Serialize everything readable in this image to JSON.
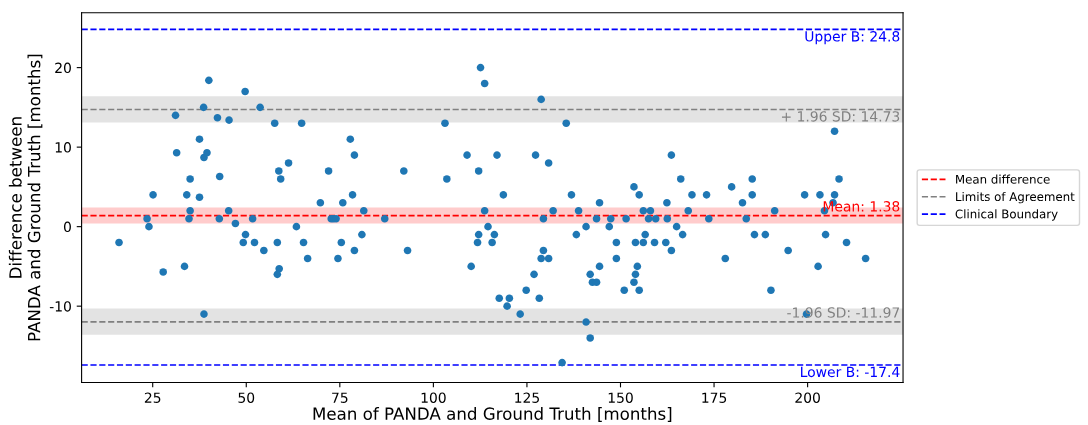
{
  "chart_data": {
    "type": "scatter",
    "xlabel": "Mean of PANDA and Ground Truth [months]",
    "ylabel": "Difference between\nPANDA and Ground Truth [months]",
    "xlim": [
      6,
      225.5
    ],
    "xticks": [
      25,
      50,
      75,
      100,
      125,
      150,
      175,
      200
    ],
    "ylim": [
      -19.6,
      26.9
    ],
    "yticks": [
      -10,
      0,
      10,
      20
    ],
    "grid": false,
    "legend": "right",
    "marker": "circle",
    "series": [
      {
        "color": "#1f77b4",
        "x": [
          16.0,
          23.5,
          24.0,
          25.1,
          27.8,
          31.1,
          31.4,
          33.5,
          34.1,
          34.7,
          35.0,
          35.0,
          37.5,
          37.5,
          38.6,
          38.7,
          39.5,
          38.7,
          40.0,
          42.3,
          42.9,
          42.8,
          45.3,
          45.4,
          47.1,
          49.7,
          49.2,
          49.8,
          51.7,
          52.2,
          53.7,
          54.7,
          57.6,
          58.3,
          58.7,
          59.2,
          58.8,
          58.3,
          61.3,
          64.8,
          63.4,
          65.3,
          66.4,
          69.8,
          72.0,
          72.7,
          73.3,
          74.0,
          74.5,
          75.4,
          75.8,
          77.8,
          78.4,
          78.9,
          78.9,
          80.9,
          81.4,
          87.0,
          92.1,
          93.1,
          103.1,
          103.6,
          109.0,
          110.1,
          112.1,
          111.8,
          112.1,
          112.6,
          113.7,
          113.7,
          114.6,
          115.7,
          116.3,
          117.0,
          117.6,
          118.7,
          120.3,
          119.7,
          123.2,
          124.8,
          126.9,
          127.3,
          128.3,
          128.8,
          128.8,
          130.8,
          129.4,
          129.4,
          130.8,
          132.0,
          134.4,
          135.5,
          136.9,
          138.2,
          138.8,
          140.8,
          140.8,
          141.9,
          141.9,
          142.5,
          143.6,
          143.6,
          144.4,
          144.4,
          147.0,
          147.4,
          148.9,
          148.9,
          151.0,
          151.5,
          153.6,
          154.0,
          153.6,
          154.0,
          154.5,
          155.0,
          155.0,
          156.1,
          156.1,
          158.0,
          156.6,
          157.5,
          159.4,
          159.1,
          162.1,
          162.4,
          162.5,
          163.6,
          163.6,
          165.0,
          166.1,
          166.6,
          168.1,
          169.1,
          173.0,
          173.6,
          178.0,
          179.7,
          182.6,
          183.6,
          185.2,
          185.2,
          185.8,
          188.7,
          190.2,
          191.2,
          194.8,
          199.2,
          199.7,
          202.8,
          203.3,
          204.5,
          204.8,
          207.2,
          208.4,
          207.2,
          206.8,
          210.4,
          215.5
        ],
        "values": [
          -2,
          1,
          0,
          4,
          -5.7,
          14,
          9.3,
          -5,
          4,
          1,
          6,
          2,
          3.7,
          11,
          15,
          8.7,
          9.3,
          -11,
          18.4,
          13.7,
          6.3,
          1,
          2,
          13.4,
          0.4,
          17,
          -2,
          -1,
          1,
          -2,
          15,
          -3,
          13,
          -2,
          7,
          6,
          -5.3,
          -6,
          8,
          13,
          0,
          -2,
          -4,
          3,
          7,
          1,
          1,
          1,
          -4,
          -2,
          3,
          11,
          4,
          9,
          -3,
          -1,
          2,
          1,
          7,
          -3,
          13,
          6,
          9,
          -5,
          7,
          -2,
          -1,
          20,
          18,
          2,
          0,
          -2,
          -1,
          9,
          -9,
          4,
          -9,
          -10,
          -11,
          -8,
          -6,
          9,
          -9,
          16,
          -4,
          -4,
          -3,
          1,
          8,
          2,
          -17.1,
          13,
          4,
          -1,
          2,
          0,
          -12,
          -14,
          -6,
          -7,
          -7,
          1,
          -5,
          3,
          0,
          1,
          -2,
          -4,
          -8,
          1,
          5,
          -2,
          -7,
          -6,
          -5,
          4,
          -8,
          -2,
          2,
          2,
          -1,
          1,
          1,
          -2,
          -2,
          3,
          1,
          9,
          -3,
          0,
          6,
          -1,
          2,
          4,
          4,
          1,
          -4,
          5,
          3,
          1,
          6,
          4,
          -1,
          -1,
          -8,
          2,
          -3,
          4,
          -11,
          -5,
          4,
          2,
          -1,
          12,
          6,
          4,
          3,
          -2,
          -4
        ]
      }
    ],
    "bands": [
      {
        "axis": "y",
        "from": 0.4,
        "to": 2.4,
        "color": "#ffcccc"
      },
      {
        "axis": "y",
        "from": 13.1,
        "to": 16.4,
        "color": "#e3e3e3"
      },
      {
        "axis": "y",
        "from": -13.6,
        "to": -10.3,
        "color": "#e3e3e3"
      }
    ],
    "ref_lines": [
      {
        "axis": "y",
        "value": 1.38,
        "label": "Mean difference",
        "color": "#ff0000",
        "line_style": "dashed"
      },
      {
        "axis": "y",
        "value": 14.73,
        "label": "Limits of Agreement",
        "color": "#808080",
        "line_style": "dashed"
      },
      {
        "axis": "y",
        "value": -11.97,
        "color": "#808080",
        "line_style": "dashed"
      },
      {
        "axis": "y",
        "value": 24.8,
        "label": "Clinical Boundary",
        "color": "#0000ff",
        "line_style": "dashed"
      },
      {
        "axis": "y",
        "value": -17.4,
        "color": "#0000ff",
        "line_style": "dashed"
      }
    ],
    "annotations": [
      {
        "text": "Mean: 1.38",
        "y": 1.38
      },
      {
        "text": "+ 1.96 SD: 14.73",
        "y": 14.73
      },
      {
        "text": "-1.96 SD: -11.97",
        "y": -11.97
      },
      {
        "text": "Upper B: 24.8",
        "y": 24.8
      },
      {
        "text": "Lower B: -17.4",
        "y": -17.4
      }
    ]
  }
}
